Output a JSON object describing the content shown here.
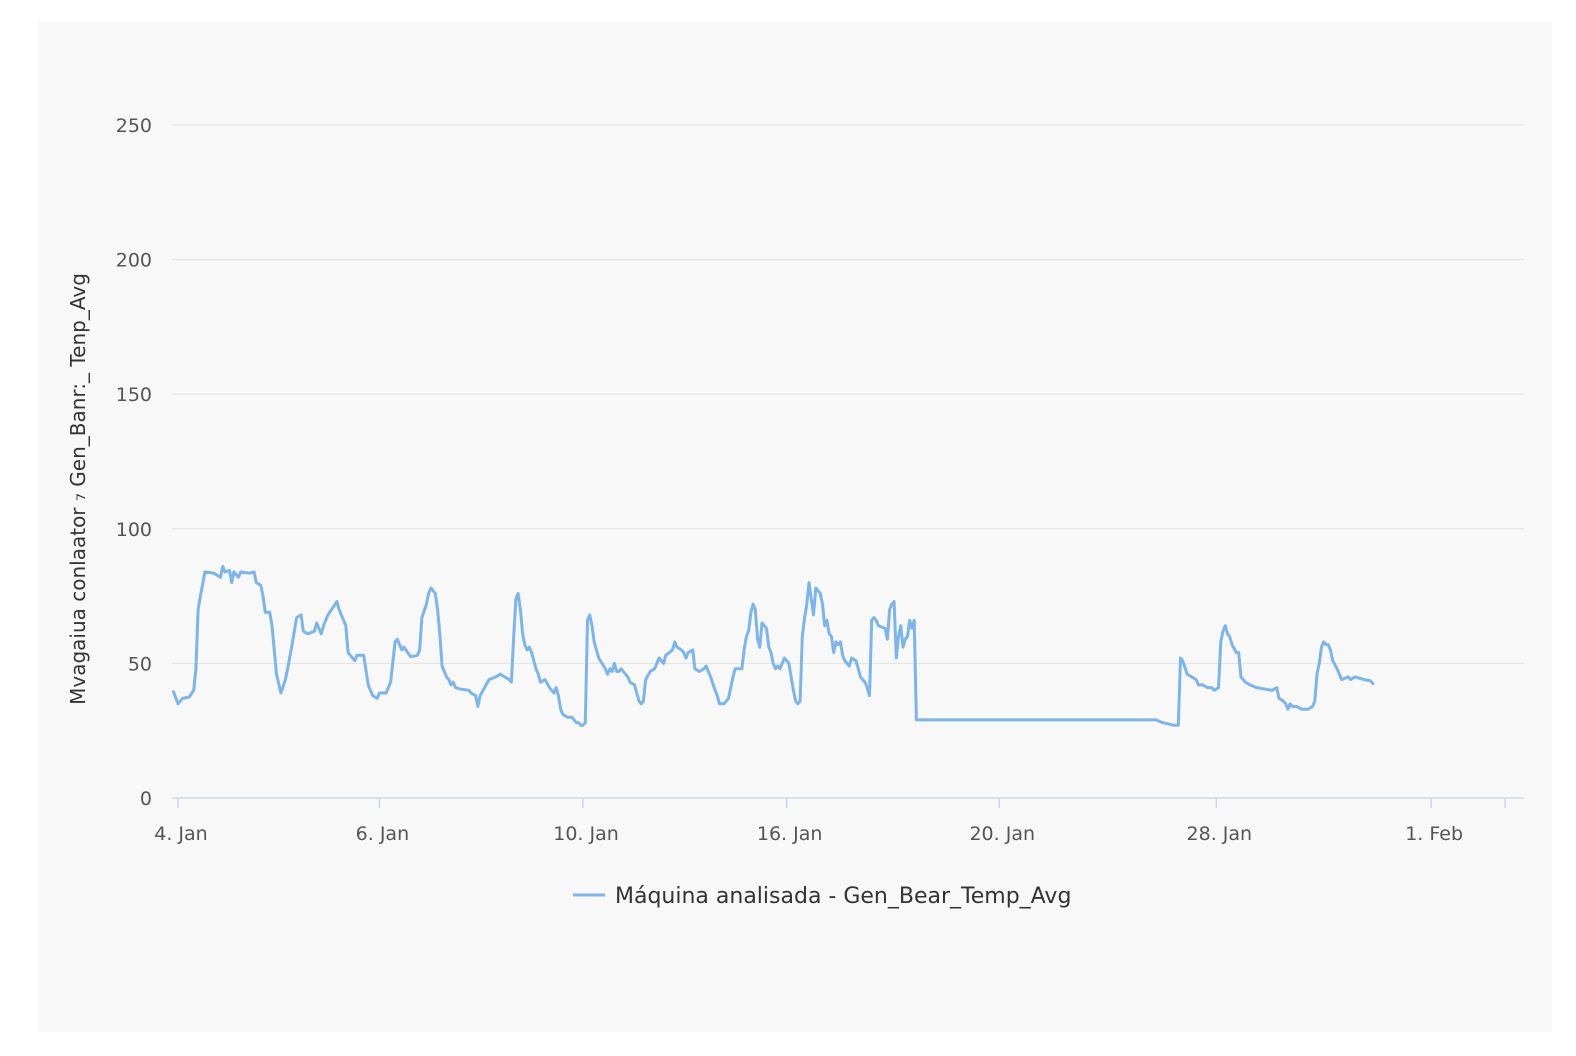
{
  "chart_data": {
    "type": "line",
    "ylabel": "Mvagaiua conlaator ₇ Gen_Banr:_ Tenp_Avg",
    "ylim": [
      0,
      250
    ],
    "yticks": [
      0,
      50,
      100,
      150,
      200,
      250
    ],
    "xlim": [
      0,
      600
    ],
    "xticks": [
      {
        "x": 0,
        "label": "4. Jan"
      },
      {
        "x": 90,
        "label": "6. Jan"
      },
      {
        "x": 181,
        "label": "10. Jan"
      },
      {
        "x": 272,
        "label": "16. Jan"
      },
      {
        "x": 367,
        "label": "20. Jan"
      },
      {
        "x": 464,
        "label": "28. Jan"
      },
      {
        "x": 560,
        "label": "1. Feb"
      },
      {
        "x": 593,
        "label": ""
      }
    ],
    "grid": true,
    "legend_position": "bottom-center",
    "colors": {
      "series": "#7cb5ec",
      "grid": "#e6e6e6",
      "axis": "#ccd6eb"
    },
    "series": [
      {
        "name": "Máquina analisada - Gen_Bear_Temp_Avg",
        "points": [
          [
            -2,
            39.5
          ],
          [
            0,
            35
          ],
          [
            2,
            37
          ],
          [
            5,
            37.5
          ],
          [
            7,
            40
          ],
          [
            8,
            48
          ],
          [
            9,
            70
          ],
          [
            10,
            75
          ],
          [
            12,
            84
          ],
          [
            16,
            83.5
          ],
          [
            19,
            82
          ],
          [
            20,
            86
          ],
          [
            21,
            84
          ],
          [
            23,
            84.5
          ],
          [
            24,
            80
          ],
          [
            25,
            84
          ],
          [
            27,
            82
          ],
          [
            28,
            84
          ],
          [
            32,
            83.5
          ],
          [
            34,
            84
          ],
          [
            35,
            80
          ],
          [
            37,
            79
          ],
          [
            38,
            75
          ],
          [
            39,
            69
          ],
          [
            41,
            69
          ],
          [
            42,
            64
          ],
          [
            44,
            46
          ],
          [
            46,
            39
          ],
          [
            48,
            44
          ],
          [
            49,
            48
          ],
          [
            51,
            57
          ],
          [
            53,
            67
          ],
          [
            55,
            68
          ],
          [
            56,
            62
          ],
          [
            58,
            61
          ],
          [
            61,
            62
          ],
          [
            62,
            65
          ],
          [
            64,
            61
          ],
          [
            65,
            64
          ],
          [
            67,
            68
          ],
          [
            71,
            73
          ],
          [
            72,
            70
          ],
          [
            74,
            66
          ],
          [
            75,
            64
          ],
          [
            76,
            54
          ],
          [
            78,
            52
          ],
          [
            79,
            51
          ],
          [
            80,
            53
          ],
          [
            83,
            53
          ],
          [
            85,
            42
          ],
          [
            87,
            38
          ],
          [
            89,
            37
          ],
          [
            90,
            39
          ],
          [
            93,
            39
          ],
          [
            95,
            43
          ],
          [
            97,
            58
          ],
          [
            98,
            59
          ],
          [
            100,
            55
          ],
          [
            101,
            56
          ],
          [
            104,
            52.5
          ],
          [
            107,
            53
          ],
          [
            108,
            55
          ],
          [
            109,
            67
          ],
          [
            111,
            72
          ],
          [
            112,
            76
          ],
          [
            113,
            78
          ],
          [
            115,
            76
          ],
          [
            116,
            70
          ],
          [
            117,
            61
          ],
          [
            118,
            49
          ],
          [
            120,
            45
          ],
          [
            121,
            44
          ],
          [
            122,
            42
          ],
          [
            123,
            43
          ],
          [
            124,
            41
          ],
          [
            126,
            40.5
          ],
          [
            130,
            40
          ],
          [
            131,
            39
          ],
          [
            133,
            38
          ],
          [
            134,
            34
          ],
          [
            135,
            38
          ],
          [
            137,
            41
          ],
          [
            139,
            44
          ],
          [
            142,
            45
          ],
          [
            144,
            46
          ],
          [
            146,
            45
          ],
          [
            148,
            44
          ],
          [
            149,
            43
          ],
          [
            150,
            60
          ],
          [
            151,
            74
          ],
          [
            152,
            76
          ],
          [
            153,
            70
          ],
          [
            154,
            61
          ],
          [
            155,
            57
          ],
          [
            156,
            55
          ],
          [
            157,
            56
          ],
          [
            158,
            54
          ],
          [
            159,
            51
          ],
          [
            160,
            48
          ],
          [
            161,
            46
          ],
          [
            162,
            43
          ],
          [
            164,
            44
          ],
          [
            166,
            41
          ],
          [
            168,
            39
          ],
          [
            169,
            41
          ],
          [
            170,
            38
          ],
          [
            171,
            33
          ],
          [
            172,
            31
          ],
          [
            174,
            30
          ],
          [
            176,
            30
          ],
          [
            178,
            28
          ],
          [
            179,
            28
          ],
          [
            180,
            27
          ],
          [
            181,
            27
          ],
          [
            182,
            28
          ],
          [
            183,
            66
          ],
          [
            184,
            68
          ],
          [
            185,
            64
          ],
          [
            186,
            58
          ],
          [
            188,
            52
          ],
          [
            191,
            48
          ],
          [
            192,
            46
          ],
          [
            193,
            48
          ],
          [
            194,
            47
          ],
          [
            195,
            50
          ],
          [
            196,
            47
          ],
          [
            197,
            47
          ],
          [
            198,
            48
          ],
          [
            201,
            45
          ],
          [
            202,
            43
          ],
          [
            204,
            42
          ],
          [
            206,
            36
          ],
          [
            207,
            35
          ],
          [
            208,
            36
          ],
          [
            209,
            44
          ],
          [
            211,
            47
          ],
          [
            213,
            48
          ],
          [
            215,
            52
          ],
          [
            217,
            50
          ],
          [
            218,
            53
          ],
          [
            221,
            55
          ],
          [
            222,
            58
          ],
          [
            223,
            56
          ],
          [
            225,
            55
          ],
          [
            226,
            54
          ],
          [
            227,
            52
          ],
          [
            228,
            54
          ],
          [
            230,
            55
          ],
          [
            231,
            48
          ],
          [
            233,
            47
          ],
          [
            235,
            48
          ],
          [
            236,
            49
          ],
          [
            238,
            45
          ],
          [
            240,
            40
          ],
          [
            241,
            38
          ],
          [
            242,
            35
          ],
          [
            244,
            35
          ],
          [
            245,
            36
          ],
          [
            246,
            37
          ],
          [
            248,
            45
          ],
          [
            249,
            48
          ],
          [
            251,
            48
          ],
          [
            252,
            48
          ],
          [
            253,
            55
          ],
          [
            254,
            60
          ],
          [
            255,
            62
          ],
          [
            256,
            69
          ],
          [
            257,
            72
          ],
          [
            258,
            70
          ],
          [
            259,
            59
          ],
          [
            260,
            56
          ],
          [
            261,
            65
          ],
          [
            262,
            64
          ],
          [
            263,
            63
          ],
          [
            264,
            56
          ],
          [
            265,
            54
          ],
          [
            266,
            50
          ],
          [
            267,
            48
          ],
          [
            268,
            49
          ],
          [
            269,
            48
          ],
          [
            270,
            50
          ],
          [
            271,
            52
          ],
          [
            272,
            51
          ],
          [
            273,
            50
          ],
          [
            274,
            45
          ],
          [
            275,
            40
          ],
          [
            276,
            36
          ],
          [
            277,
            35
          ],
          [
            278,
            36
          ],
          [
            279,
            60
          ],
          [
            280,
            67
          ],
          [
            281,
            72
          ],
          [
            282,
            80
          ],
          [
            283,
            74
          ],
          [
            284,
            68
          ],
          [
            285,
            78
          ],
          [
            287,
            76
          ],
          [
            288,
            72
          ],
          [
            289,
            64
          ],
          [
            290,
            66
          ],
          [
            291,
            61
          ],
          [
            292,
            60
          ],
          [
            293,
            54
          ],
          [
            294,
            58
          ],
          [
            295,
            57
          ],
          [
            296,
            58
          ],
          [
            297,
            53
          ],
          [
            298,
            51
          ],
          [
            299,
            50
          ],
          [
            300,
            49
          ],
          [
            301,
            52
          ],
          [
            303,
            51
          ],
          [
            304,
            48
          ],
          [
            305,
            45
          ],
          [
            306,
            44
          ],
          [
            307,
            43
          ],
          [
            308,
            41
          ],
          [
            309,
            38
          ],
          [
            310,
            66
          ],
          [
            311,
            67
          ],
          [
            312,
            66
          ],
          [
            313,
            64
          ],
          [
            316,
            63
          ],
          [
            317,
            59
          ],
          [
            318,
            70
          ],
          [
            319,
            72
          ],
          [
            320,
            73
          ],
          [
            321,
            52
          ],
          [
            322,
            60
          ],
          [
            323,
            64
          ],
          [
            324,
            56
          ],
          [
            325,
            59
          ],
          [
            326,
            60
          ],
          [
            327,
            66
          ],
          [
            328,
            63
          ],
          [
            329,
            66
          ],
          [
            330,
            29
          ],
          [
            331,
            29
          ],
          [
            360,
            29
          ],
          [
            380,
            29
          ],
          [
            400,
            29
          ],
          [
            420,
            29
          ],
          [
            437,
            29
          ],
          [
            440,
            28
          ],
          [
            445,
            27
          ],
          [
            447,
            27
          ],
          [
            448,
            52
          ],
          [
            449,
            51
          ],
          [
            451,
            46
          ],
          [
            453,
            45
          ],
          [
            455,
            44
          ],
          [
            456,
            42
          ],
          [
            458,
            42
          ],
          [
            460,
            41
          ],
          [
            462,
            41
          ],
          [
            463,
            40
          ],
          [
            465,
            41
          ],
          [
            466,
            58
          ],
          [
            467,
            62
          ],
          [
            468,
            64
          ],
          [
            469,
            61
          ],
          [
            470,
            60
          ],
          [
            471,
            57
          ],
          [
            473,
            54
          ],
          [
            474,
            54
          ],
          [
            475,
            45
          ],
          [
            477,
            43
          ],
          [
            479,
            42
          ],
          [
            482,
            41
          ],
          [
            489,
            40
          ],
          [
            491,
            41
          ],
          [
            492,
            37
          ],
          [
            494,
            36
          ],
          [
            495,
            35
          ],
          [
            496,
            33
          ],
          [
            497,
            35
          ],
          [
            498,
            34
          ],
          [
            500,
            34
          ],
          [
            502,
            33
          ],
          [
            505,
            33
          ],
          [
            507,
            34
          ],
          [
            508,
            36
          ],
          [
            509,
            46
          ],
          [
            510,
            50
          ],
          [
            511,
            56
          ],
          [
            512,
            58
          ],
          [
            513,
            57
          ],
          [
            514,
            57
          ],
          [
            515,
            55
          ],
          [
            516,
            51
          ],
          [
            518,
            48
          ],
          [
            519,
            46
          ],
          [
            520,
            44
          ],
          [
            523,
            45
          ],
          [
            524,
            44
          ],
          [
            526,
            45
          ],
          [
            530,
            44
          ],
          [
            533,
            43.5
          ],
          [
            534,
            42.5
          ]
        ]
      }
    ]
  }
}
